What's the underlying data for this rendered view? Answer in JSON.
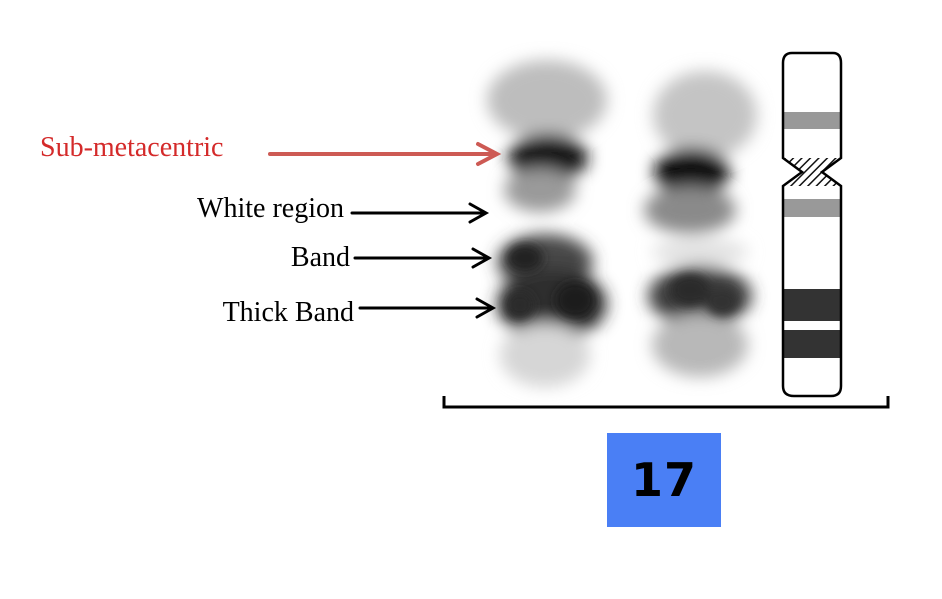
{
  "labels": {
    "sub_metacentric": "Sub-metacentric",
    "white_region": "White region",
    "band": "Band",
    "thick_band": "Thick Band"
  },
  "chromosome_number": "17",
  "colors": {
    "highlight_label": "#d42a2a",
    "highlight_arrow": "#cd5a54",
    "label": "#000000",
    "number_box": "#4a7ff5",
    "ideogram_band_dark": "#333333",
    "ideogram_band_light": "#999999"
  }
}
